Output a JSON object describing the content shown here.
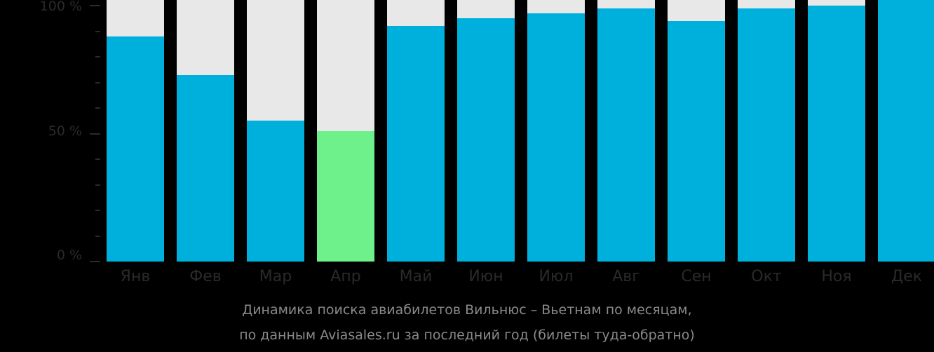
{
  "chart_data": {
    "type": "bar",
    "title": "Динамика поиска авиабилетов Вильнюс – Вьетнам по месяцам,",
    "subtitle": "по данным Aviasales.ru за последний год (билеты туда-обратно)",
    "xlabel": "",
    "ylabel": "",
    "ylim": [
      0,
      100
    ],
    "y_ticks": [
      "0 %",
      "50 %",
      "100 %"
    ],
    "categories": [
      "Янв",
      "Фев",
      "Мар",
      "Апр",
      "Май",
      "Июн",
      "Июл",
      "Авг",
      "Сен",
      "Окт",
      "Ноя",
      "Дек"
    ],
    "values": [
      88,
      73,
      55,
      51,
      92,
      95,
      97,
      99,
      94,
      99,
      100,
      100
    ],
    "highlight_index": 3,
    "colors": {
      "bar": "#00b0dc",
      "highlight": "#6ef08a",
      "background_bar": "#e8e8e8"
    },
    "grid": false,
    "legend": null
  },
  "axis": {
    "y_labels": [
      "100 %",
      "50 %",
      "0 %"
    ]
  },
  "caption": {
    "line1": "Динамика поиска авиабилетов Вильнюс – Вьетнам по месяцам,",
    "line2": "по данным Aviasales.ru за последний год (билеты туда-обратно)"
  }
}
